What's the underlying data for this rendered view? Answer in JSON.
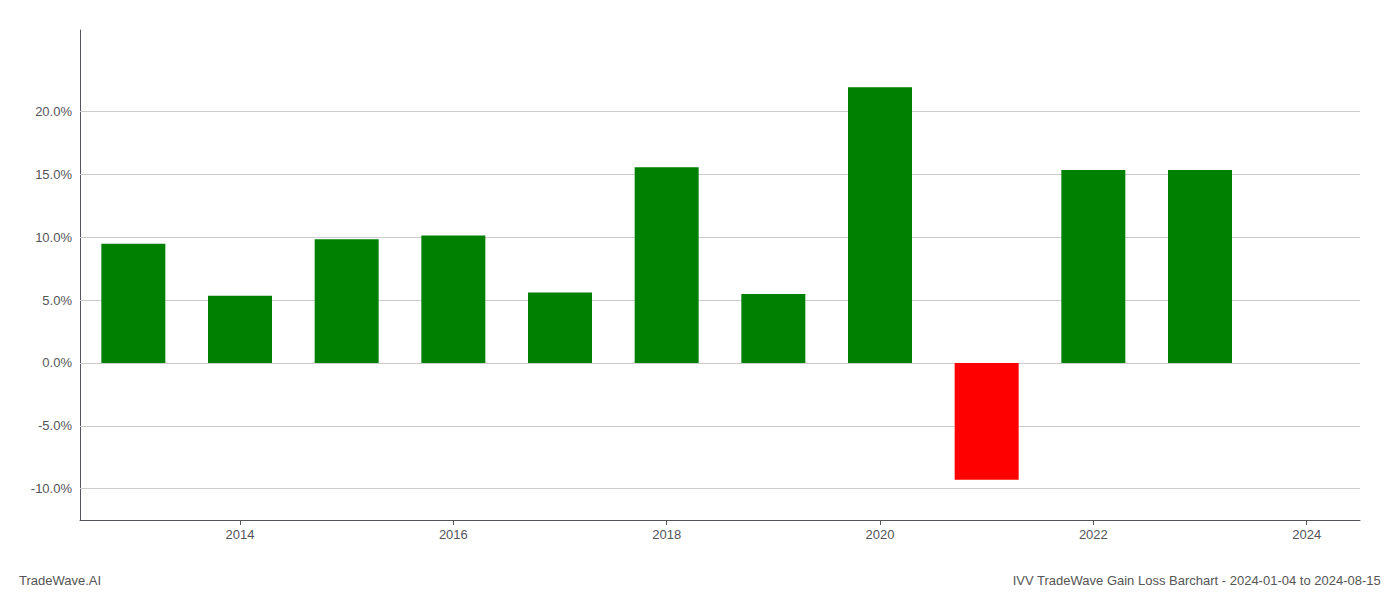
{
  "chart_data": {
    "type": "bar",
    "title": "IVV TradeWave Gain Loss Barchart - 2024-01-04 to 2024-08-15",
    "annotations": [
      "TradeWave.AI"
    ],
    "x": [
      2013,
      2014,
      2015,
      2016,
      2017,
      2018,
      2019,
      2020,
      2021,
      2022,
      2023
    ],
    "values": [
      0.0948,
      0.0535,
      0.0985,
      0.1015,
      0.056,
      0.1558,
      0.0548,
      0.2195,
      -0.093,
      0.1535,
      0.1535
    ],
    "colors": [
      "#008000",
      "#008000",
      "#008000",
      "#008000",
      "#008000",
      "#008000",
      "#008000",
      "#008000",
      "#ff0000",
      "#008000",
      "#008000"
    ],
    "xlim": [
      2012.5,
      2024.5
    ],
    "xticks": [
      2014,
      2016,
      2018,
      2020,
      2022,
      2024
    ],
    "ylim": [
      -0.125,
      0.265
    ],
    "yticks": [
      {
        "value": -0.1,
        "label": "-10.0%"
      },
      {
        "value": -0.05,
        "label": "-5.0%"
      },
      {
        "value": 0.0,
        "label": "0.0%"
      },
      {
        "value": 0.05,
        "label": "5.0%"
      },
      {
        "value": 0.1,
        "label": "10.0%"
      },
      {
        "value": 0.15,
        "label": "15.0%"
      },
      {
        "value": 0.2,
        "label": "20.0%"
      }
    ],
    "grid": true
  }
}
